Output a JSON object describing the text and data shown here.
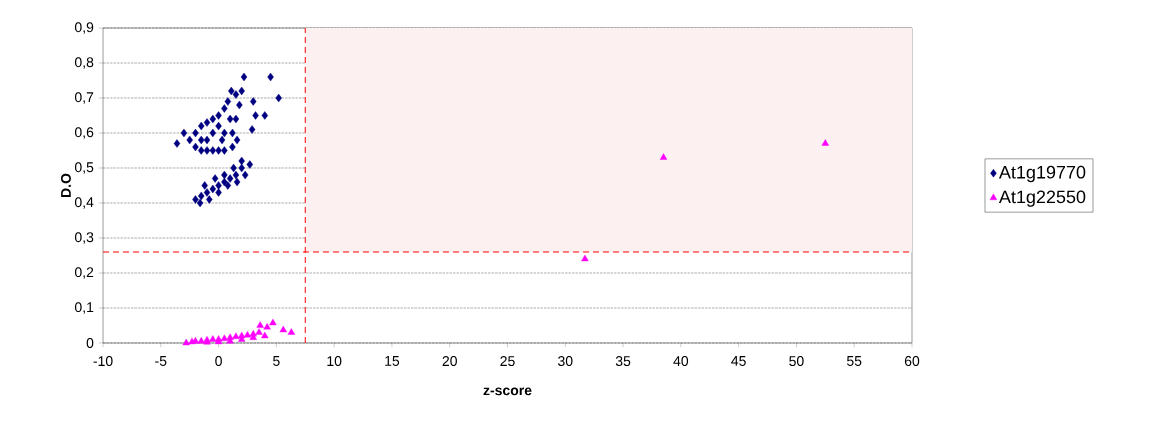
{
  "chart_data": {
    "type": "scatter",
    "xlabel": "z-score",
    "ylabel": "D.O",
    "xlim": [
      -10,
      60
    ],
    "ylim": [
      0,
      0.9
    ],
    "xticks": [
      -10,
      -5,
      0,
      5,
      10,
      15,
      20,
      25,
      30,
      35,
      40,
      45,
      50,
      55,
      60
    ],
    "yticks": [
      {
        "value": 0,
        "label": "0"
      },
      {
        "value": 0.1,
        "label": "0,1"
      },
      {
        "value": 0.2,
        "label": "0,2"
      },
      {
        "value": 0.3,
        "label": "0,3"
      },
      {
        "value": 0.4,
        "label": "0,4"
      },
      {
        "value": 0.5,
        "label": "0,5"
      },
      {
        "value": 0.6,
        "label": "0,6"
      },
      {
        "value": 0.7,
        "label": "0,7"
      },
      {
        "value": 0.8,
        "label": "0,8"
      },
      {
        "value": 0.9,
        "label": "0,9"
      }
    ],
    "grid": "y",
    "legend": "right",
    "ref_lines": [
      {
        "axis": "x",
        "value": 7.5,
        "color": "#ff0000",
        "line_style": "dashed"
      },
      {
        "axis": "y",
        "value": 0.26,
        "color": "#ff0000",
        "line_style": "dashed"
      }
    ],
    "bands": [
      {
        "axis": "x",
        "from": 7.5,
        "to": 60,
        "color": "#fdf0f0"
      }
    ],
    "series": [
      {
        "name": "At1g19770",
        "color": "#000080",
        "marker": "diamond",
        "x": [
          -3.6,
          -3.0,
          -2.5,
          -2.0,
          -1.5,
          -1.0,
          -0.5,
          0,
          0.5,
          1.2,
          -2.0,
          -1.5,
          -1.0,
          -0.5,
          0,
          0.5,
          0.8,
          1.1,
          1.5,
          1.8,
          1.5,
          1.2,
          0.5,
          -0.5,
          -1.0,
          0,
          1.6,
          -1.5,
          0.3,
          1.0,
          2.2,
          4.5,
          3.0,
          5.2,
          3.2,
          4.0,
          2.9,
          2.0,
          -2.0,
          -1.5,
          -1.0,
          -0.5,
          0,
          0.5,
          1.0,
          1.5,
          2.0,
          2.7,
          -1.6,
          -0.8,
          0,
          0.8,
          1.6,
          2.3,
          -1.2,
          -0.3,
          0.5,
          1.3,
          2.0
        ],
        "values": [
          0.57,
          0.6,
          0.58,
          0.56,
          0.55,
          0.55,
          0.55,
          0.55,
          0.55,
          0.56,
          0.6,
          0.62,
          0.63,
          0.64,
          0.65,
          0.67,
          0.69,
          0.72,
          0.71,
          0.68,
          0.64,
          0.6,
          0.6,
          0.6,
          0.58,
          0.62,
          0.58,
          0.58,
          0.58,
          0.64,
          0.76,
          0.76,
          0.69,
          0.7,
          0.65,
          0.65,
          0.61,
          0.72,
          0.41,
          0.42,
          0.43,
          0.44,
          0.45,
          0.46,
          0.47,
          0.48,
          0.5,
          0.51,
          0.4,
          0.41,
          0.43,
          0.45,
          0.46,
          0.48,
          0.45,
          0.47,
          0.48,
          0.5,
          0.52
        ]
      },
      {
        "name": "At1g22550",
        "color": "#ff00ff",
        "marker": "triangle",
        "x": [
          -2.8,
          -2.3,
          -2.0,
          -1.5,
          -1.0,
          -0.5,
          0,
          0.5,
          1.0,
          1.5,
          2.0,
          2.5,
          3.0,
          3.5,
          -1.0,
          0,
          1.0,
          2.0,
          3.0,
          4.0,
          3.6,
          4.2,
          4.7,
          5.6,
          6.3,
          31.7,
          38.5,
          52.5
        ],
        "values": [
          0.0,
          0.003,
          0.005,
          0.005,
          0.008,
          0.01,
          0.01,
          0.012,
          0.015,
          0.018,
          0.02,
          0.022,
          0.025,
          0.03,
          0.002,
          0.003,
          0.005,
          0.01,
          0.015,
          0.02,
          0.05,
          0.045,
          0.057,
          0.037,
          0.03,
          0.24,
          0.53,
          0.57
        ]
      }
    ]
  }
}
